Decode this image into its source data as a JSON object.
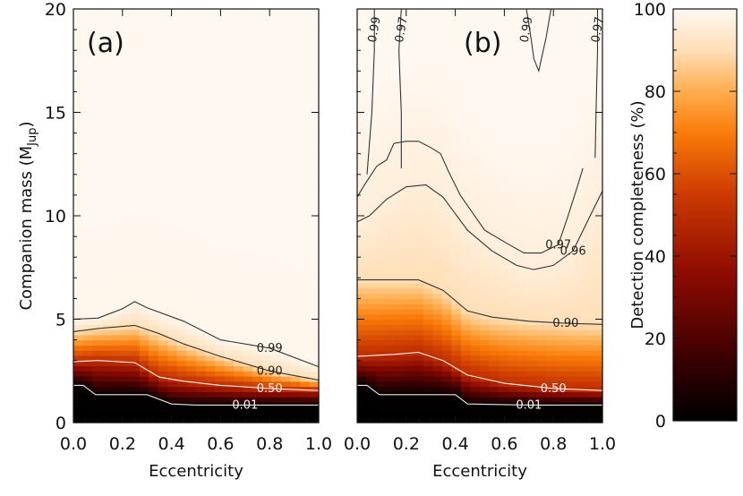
{
  "chart_data": [
    {
      "type": "heatmap",
      "panel_label": "(a)",
      "xlabel": "Eccentricity",
      "ylabel": "Companion mass (M",
      "ylabel_sub": "Jup",
      "ylabel_close": ")",
      "xlim": [
        0,
        1
      ],
      "ylim": [
        0,
        20
      ],
      "xticks": [
        "0.0",
        "0.2",
        "0.4",
        "0.6",
        "0.8",
        "1.0"
      ],
      "yticks": [
        "0",
        "5",
        "10",
        "15",
        "20"
      ],
      "contours": [
        {
          "level": "0.01",
          "color": "#e8e8e8",
          "x": [
            0,
            0.04,
            0.09,
            0.3,
            0.4,
            0.5,
            0.7,
            1.0
          ],
          "y": [
            1.8,
            1.8,
            1.35,
            1.35,
            0.9,
            0.85,
            0.85,
            0.85
          ]
        },
        {
          "level": "0.50",
          "color": "#f3f3f3",
          "x": [
            0,
            0.1,
            0.25,
            0.35,
            0.45,
            0.6,
            0.8,
            1.0
          ],
          "y": [
            2.95,
            3.0,
            2.9,
            2.2,
            2.0,
            1.8,
            1.65,
            1.55
          ]
        },
        {
          "level": "0.90",
          "color": "#333333",
          "x": [
            0,
            0.1,
            0.25,
            0.35,
            0.45,
            0.6,
            0.8,
            1.0
          ],
          "y": [
            4.4,
            4.55,
            4.7,
            4.3,
            3.8,
            3.2,
            2.5,
            2.05
          ]
        },
        {
          "level": "0.99",
          "color": "#333333",
          "x": [
            0,
            0.1,
            0.2,
            0.25,
            0.3,
            0.45,
            0.6,
            0.8,
            1.0
          ],
          "y": [
            5.0,
            5.05,
            5.5,
            5.85,
            5.55,
            4.9,
            4.0,
            3.6,
            2.7
          ]
        }
      ]
    },
    {
      "type": "heatmap",
      "panel_label": "(b)",
      "xlabel": "Eccentricity",
      "xlim": [
        0,
        1
      ],
      "ylim": [
        0,
        20
      ],
      "xticks": [
        "0.0",
        "0.2",
        "0.4",
        "0.6",
        "0.8",
        "1.0"
      ],
      "contours": [
        {
          "level": "0.01",
          "color": "#e8e8e8",
          "x": [
            0,
            0.04,
            0.09,
            0.3,
            0.4,
            0.45,
            0.7,
            1.0
          ],
          "y": [
            1.8,
            1.8,
            1.35,
            1.35,
            1.35,
            0.9,
            0.85,
            0.85
          ]
        },
        {
          "level": "0.50",
          "color": "#f3f3f3",
          "x": [
            0,
            0.15,
            0.25,
            0.35,
            0.45,
            0.6,
            0.8,
            1.0
          ],
          "y": [
            3.2,
            3.3,
            3.4,
            3.0,
            2.3,
            1.9,
            1.65,
            1.55
          ]
        },
        {
          "level": "0.90",
          "color": "#333333",
          "x": [
            0,
            0.15,
            0.25,
            0.35,
            0.45,
            0.55,
            0.7,
            0.85,
            1.0
          ],
          "y": [
            6.9,
            6.9,
            6.9,
            6.4,
            5.4,
            5.1,
            4.9,
            4.8,
            4.75
          ]
        },
        {
          "level": "0.96",
          "color": "#333333",
          "x": [
            0,
            0.05,
            0.12,
            0.2,
            0.28,
            0.35,
            0.45,
            0.55,
            0.65,
            0.72,
            0.8,
            0.88,
            0.95,
            1.0
          ],
          "y": [
            9.7,
            10.0,
            10.8,
            11.4,
            11.5,
            10.9,
            9.3,
            8.3,
            7.6,
            7.4,
            7.6,
            8.3,
            10.0,
            11.2
          ]
        },
        {
          "level": "0.97",
          "color": "#333333",
          "x": [
            0,
            0.03,
            0.08,
            0.12,
            0.15,
            0.2,
            0.25,
            0.3,
            0.34,
            0.37,
            0.42,
            0.52,
            0.62,
            0.68,
            0.75,
            0.82,
            0.86,
            0.9,
            0.92
          ],
          "y": [
            10.9,
            11.5,
            12.4,
            12.7,
            13.5,
            13.6,
            13.6,
            13.3,
            13.0,
            12.2,
            11.0,
            9.3,
            8.6,
            8.2,
            8.2,
            8.6,
            10.0,
            11.5,
            12.3
          ]
        },
        {
          "level": "0.99",
          "color": "#333333",
          "x": [
            0.04,
            0.06,
            0.07,
            0.07
          ],
          "y": [
            12.0,
            15.0,
            18.0,
            20.0
          ]
        },
        {
          "level": "0.97",
          "color": "#333333",
          "x": [
            0.18,
            0.18,
            0.17,
            0.18
          ],
          "y": [
            12.3,
            15.0,
            18.0,
            20.0
          ]
        },
        {
          "level": "0.99",
          "color": "#333333",
          "x": [
            0.69,
            0.71,
            0.72,
            0.74,
            0.77,
            0.79
          ],
          "y": [
            20.0,
            18.5,
            17.6,
            17.0,
            18.6,
            20.0
          ]
        },
        {
          "level": "0.97",
          "color": "#333333",
          "x": [
            0.97,
            0.975,
            0.98,
            0.98
          ],
          "y": [
            12.8,
            15.5,
            18.0,
            20.0
          ]
        }
      ]
    }
  ],
  "colorbar": {
    "label": "Detection completeness (%)",
    "range": [
      0,
      100
    ],
    "ticks": [
      "0",
      "20",
      "40",
      "60",
      "80",
      "100"
    ]
  }
}
